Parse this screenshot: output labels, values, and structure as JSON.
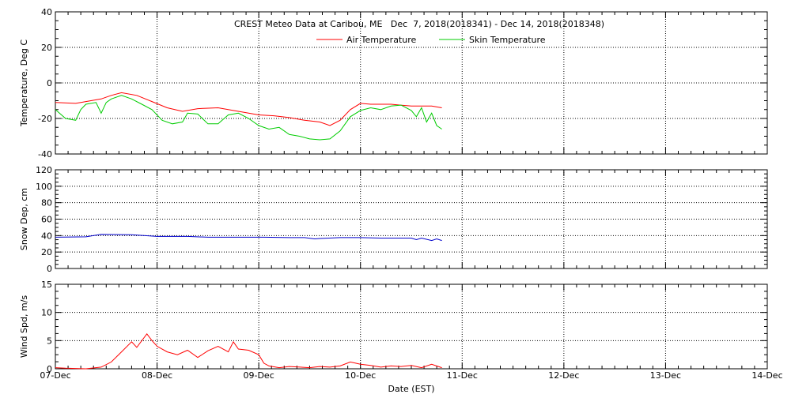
{
  "chart_data": {
    "type": "line",
    "title": "CREST Meteo Data at Caribou, ME   Dec  7, 2018(2018341) - Dec 14, 2018(2018348)",
    "xlabel": "Date (EST)",
    "x_ticks": [
      "07-Dec",
      "08-Dec",
      "09-Dec",
      "10-Dec",
      "11-Dec",
      "12-Dec",
      "13-Dec",
      "14-Dec"
    ],
    "x_range_days": [
      0,
      7
    ],
    "panels": [
      {
        "id": "temperature",
        "ylabel": "Temperature, Deg C",
        "ylim": [
          -40,
          40
        ],
        "yticks": [
          -40,
          -20,
          0,
          20,
          40
        ],
        "legend_position": "top-center",
        "series": [
          {
            "name": "Air Temperature",
            "color": "#ff0000",
            "points": [
              [
                0,
                -11
              ],
              [
                0.2,
                -11.5
              ],
              [
                0.3,
                -10.5
              ],
              [
                0.45,
                -9
              ],
              [
                0.55,
                -7
              ],
              [
                0.65,
                -5.5
              ],
              [
                0.8,
                -7
              ],
              [
                0.95,
                -10.5
              ],
              [
                1.1,
                -14
              ],
              [
                1.25,
                -16
              ],
              [
                1.4,
                -14.5
              ],
              [
                1.6,
                -14
              ],
              [
                1.8,
                -16
              ],
              [
                2.0,
                -18
              ],
              [
                2.15,
                -18.5
              ],
              [
                2.3,
                -19.5
              ],
              [
                2.45,
                -21
              ],
              [
                2.6,
                -22
              ],
              [
                2.7,
                -24
              ],
              [
                2.8,
                -21
              ],
              [
                2.9,
                -15
              ],
              [
                3.0,
                -11.5
              ],
              [
                3.1,
                -12
              ],
              [
                3.3,
                -12
              ],
              [
                3.5,
                -13
              ],
              [
                3.7,
                -13
              ],
              [
                3.8,
                -14
              ]
            ]
          },
          {
            "name": "Skin Temperature",
            "color": "#00cc00",
            "points": [
              [
                0,
                -15
              ],
              [
                0.1,
                -20
              ],
              [
                0.2,
                -21
              ],
              [
                0.25,
                -15
              ],
              [
                0.3,
                -12
              ],
              [
                0.4,
                -11
              ],
              [
                0.45,
                -17
              ],
              [
                0.5,
                -11
              ],
              [
                0.55,
                -9
              ],
              [
                0.65,
                -7
              ],
              [
                0.75,
                -9
              ],
              [
                0.85,
                -12
              ],
              [
                0.95,
                -15
              ],
              [
                1.05,
                -21
              ],
              [
                1.15,
                -23
              ],
              [
                1.25,
                -22
              ],
              [
                1.3,
                -17
              ],
              [
                1.4,
                -17.5
              ],
              [
                1.5,
                -23
              ],
              [
                1.6,
                -23
              ],
              [
                1.7,
                -18
              ],
              [
                1.8,
                -17
              ],
              [
                1.9,
                -20
              ],
              [
                2.0,
                -24
              ],
              [
                2.1,
                -26
              ],
              [
                2.2,
                -25
              ],
              [
                2.3,
                -29
              ],
              [
                2.4,
                -30
              ],
              [
                2.5,
                -31.5
              ],
              [
                2.6,
                -32
              ],
              [
                2.7,
                -31.5
              ],
              [
                2.8,
                -27
              ],
              [
                2.9,
                -19
              ],
              [
                3.0,
                -15.5
              ],
              [
                3.1,
                -14
              ],
              [
                3.2,
                -15
              ],
              [
                3.3,
                -13
              ],
              [
                3.4,
                -12.5
              ],
              [
                3.5,
                -15.5
              ],
              [
                3.55,
                -19
              ],
              [
                3.6,
                -14
              ],
              [
                3.65,
                -22
              ],
              [
                3.7,
                -17
              ],
              [
                3.75,
                -24
              ],
              [
                3.8,
                -26
              ]
            ]
          }
        ]
      },
      {
        "id": "snow",
        "ylabel": "Snow Dep, cm",
        "ylim": [
          0,
          120
        ],
        "yticks": [
          0,
          20,
          40,
          60,
          80,
          100,
          120
        ],
        "series": [
          {
            "name": "Snow Depth",
            "color": "#0000cc",
            "points": [
              [
                0,
                38
              ],
              [
                0.3,
                38.5
              ],
              [
                0.45,
                41.5
              ],
              [
                0.75,
                41
              ],
              [
                1.0,
                39
              ],
              [
                1.3,
                39
              ],
              [
                1.5,
                38
              ],
              [
                1.9,
                38
              ],
              [
                2.05,
                38
              ],
              [
                2.3,
                37.5
              ],
              [
                2.45,
                37.5
              ],
              [
                2.55,
                36
              ],
              [
                2.6,
                36.5
              ],
              [
                2.8,
                37.5
              ],
              [
                3.0,
                37.5
              ],
              [
                3.2,
                37
              ],
              [
                3.5,
                37
              ],
              [
                3.55,
                35
              ],
              [
                3.6,
                37
              ],
              [
                3.7,
                34
              ],
              [
                3.75,
                36
              ],
              [
                3.8,
                34
              ]
            ]
          }
        ]
      },
      {
        "id": "wind",
        "ylabel": "Wind Spd, m/s",
        "ylim": [
          0,
          15
        ],
        "yticks": [
          0,
          5,
          10,
          15
        ],
        "series": [
          {
            "name": "Wind Speed",
            "color": "#ff0000",
            "points": [
              [
                0,
                0.2
              ],
              [
                0.1,
                0.1
              ],
              [
                0.3,
                0
              ],
              [
                0.45,
                0.3
              ],
              [
                0.55,
                1.2
              ],
              [
                0.65,
                3
              ],
              [
                0.75,
                4.8
              ],
              [
                0.8,
                3.8
              ],
              [
                0.9,
                6.2
              ],
              [
                0.95,
                5
              ],
              [
                1.0,
                4
              ],
              [
                1.1,
                3
              ],
              [
                1.2,
                2.5
              ],
              [
                1.3,
                3.3
              ],
              [
                1.4,
                2
              ],
              [
                1.5,
                3.2
              ],
              [
                1.6,
                4
              ],
              [
                1.7,
                3
              ],
              [
                1.75,
                4.8
              ],
              [
                1.8,
                3.5
              ],
              [
                1.9,
                3.3
              ],
              [
                2.0,
                2.5
              ],
              [
                2.05,
                1
              ],
              [
                2.1,
                0.5
              ],
              [
                2.2,
                0.2
              ],
              [
                2.3,
                0.4
              ],
              [
                2.5,
                0.2
              ],
              [
                2.6,
                0.4
              ],
              [
                2.7,
                0.3
              ],
              [
                2.8,
                0.5
              ],
              [
                2.9,
                1.2
              ],
              [
                3.0,
                0.8
              ],
              [
                3.1,
                0.6
              ],
              [
                3.2,
                0.3
              ],
              [
                3.3,
                0.5
              ],
              [
                3.4,
                0.4
              ],
              [
                3.5,
                0.6
              ],
              [
                3.6,
                0.2
              ],
              [
                3.7,
                0.8
              ],
              [
                3.8,
                0.2
              ]
            ]
          }
        ]
      }
    ]
  }
}
